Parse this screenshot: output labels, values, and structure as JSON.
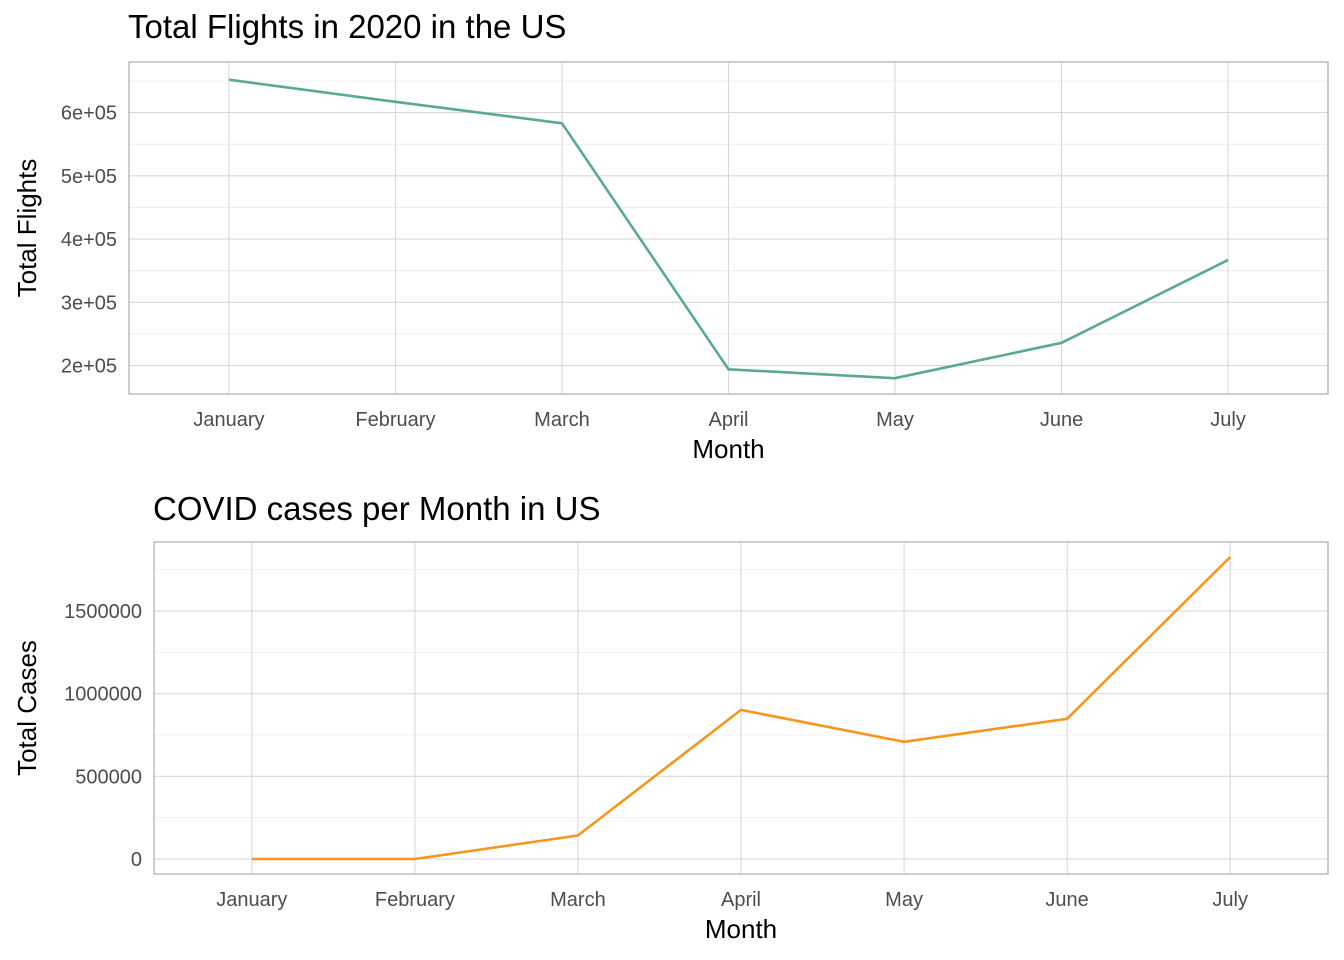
{
  "chart_data": [
    {
      "type": "line",
      "title": "Total Flights in 2020 in the US",
      "xlabel": "Month",
      "ylabel": "Total Flights",
      "categories": [
        "January",
        "February",
        "March",
        "April",
        "May",
        "June",
        "July"
      ],
      "series": [
        {
          "values": [
            652000,
            617000,
            583000,
            194000,
            180000,
            236000,
            367000
          ],
          "color": "#5aaa8f"
        }
      ],
      "ylim": [
        155000,
        680000
      ],
      "yticks": [
        200000,
        300000,
        400000,
        500000,
        600000
      ],
      "ytick_labels": [
        "2e+05",
        "3e+05",
        "4e+05",
        "5e+05",
        "6e+05"
      ],
      "grid": true,
      "legend": "none"
    },
    {
      "type": "line",
      "title": "COVID cases per Month in US",
      "xlabel": "Month",
      "ylabel": "Total Cases",
      "categories": [
        "January",
        "February",
        "March",
        "April",
        "May",
        "June",
        "July"
      ],
      "series": [
        {
          "values": [
            0,
            0,
            142000,
            902000,
            709000,
            848000,
            1827000
          ],
          "color": "#f7961e"
        }
      ],
      "ylim": [
        -91000,
        1918000
      ],
      "yticks": [
        0,
        500000,
        1000000,
        1500000
      ],
      "ytick_labels": [
        "0",
        "500000",
        "1000000",
        "1500000"
      ],
      "grid": true,
      "legend": "none"
    }
  ]
}
